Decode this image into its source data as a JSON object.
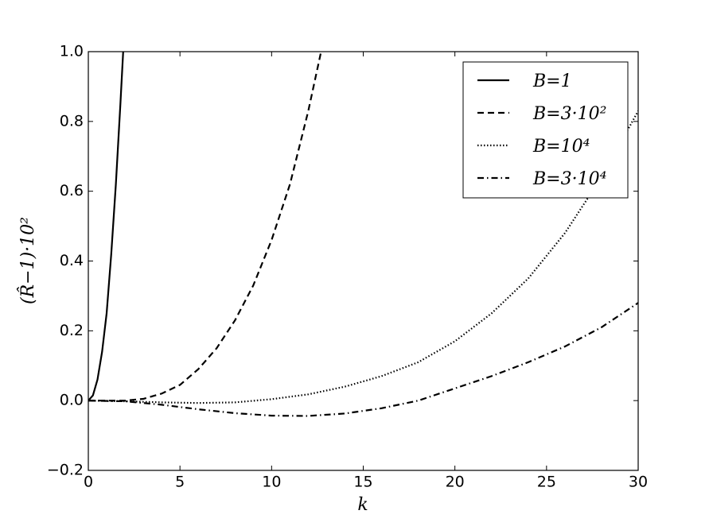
{
  "chart_data": {
    "type": "line",
    "xlabel": "k",
    "ylabel": "(R̂−1)·10²",
    "xlim": [
      0,
      30
    ],
    "ylim": [
      -0.2,
      1.0
    ],
    "xticks": [
      0,
      5,
      10,
      15,
      20,
      25,
      30
    ],
    "yticks": [
      {
        "value": -0.2,
        "label": "−0.2"
      },
      {
        "value": 0.0,
        "label": "0.0"
      },
      0.2,
      0.4,
      0.6,
      0.8,
      {
        "value": 1.0,
        "label": "1.0"
      }
    ],
    "legend": "upper right",
    "series": [
      {
        "name": "B=1",
        "color": "#000000",
        "style": "solid",
        "x": [
          0,
          0.25,
          0.5,
          0.75,
          1.0,
          1.25,
          1.5,
          1.75,
          1.9
        ],
        "values": [
          0,
          0.015,
          0.06,
          0.14,
          0.25,
          0.42,
          0.62,
          0.85,
          1.0
        ]
      },
      {
        "name": "B=3·10²",
        "color": "#000000",
        "style": "dashed",
        "x": [
          0,
          1,
          2,
          3,
          4,
          5,
          6,
          7,
          8,
          9,
          10,
          11,
          12,
          12.7
        ],
        "values": [
          0,
          0,
          0,
          0.005,
          0.02,
          0.045,
          0.09,
          0.15,
          0.23,
          0.33,
          0.46,
          0.62,
          0.83,
          1.0
        ]
      },
      {
        "name": "B=10⁴",
        "color": "#000000",
        "style": "dotted",
        "x": [
          0,
          2,
          4,
          6,
          8,
          10,
          12,
          14,
          16,
          18,
          20,
          22,
          24,
          26,
          28,
          30
        ],
        "values": [
          0,
          -0.002,
          -0.005,
          -0.007,
          -0.005,
          0.004,
          0.018,
          0.04,
          0.07,
          0.11,
          0.17,
          0.25,
          0.35,
          0.48,
          0.64,
          0.83
        ]
      },
      {
        "name": "B=3·10⁴",
        "color": "#000000",
        "style": "dashdot",
        "x": [
          0,
          2,
          4,
          6,
          8,
          10,
          12,
          14,
          16,
          18,
          20,
          22,
          24,
          26,
          28,
          30
        ],
        "values": [
          0,
          -0.002,
          -0.012,
          -0.025,
          -0.036,
          -0.043,
          -0.044,
          -0.037,
          -0.022,
          0.0,
          0.035,
          0.07,
          0.11,
          0.155,
          0.21,
          0.28
        ]
      }
    ]
  }
}
